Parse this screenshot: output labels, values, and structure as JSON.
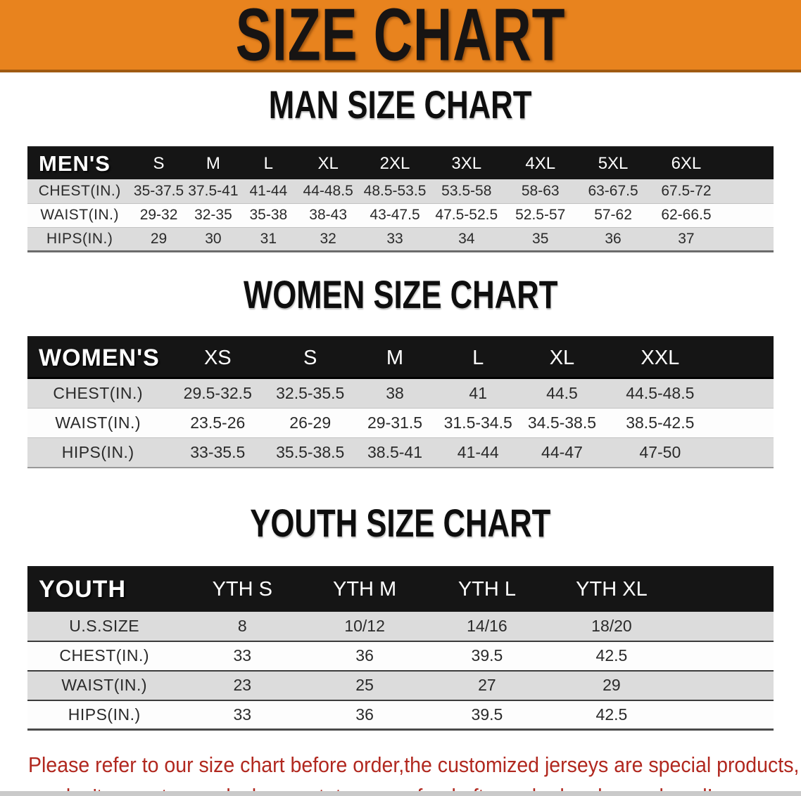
{
  "banner": {
    "title": "SIZE CHART"
  },
  "sections": [
    {
      "id": "men",
      "title": "MAN SIZE CHART",
      "header_label": "MEN'S",
      "columns": [
        "S",
        "M",
        "L",
        "XL",
        "2XL",
        "3XL",
        "4XL",
        "5XL",
        "6XL"
      ],
      "rows": [
        {
          "label": "CHEST(IN.)",
          "values": [
            "35-37.5",
            "37.5-41",
            "41-44",
            "44-48.5",
            "48.5-53.5",
            "53.5-58",
            "58-63",
            "63-67.5",
            "67.5-72"
          ]
        },
        {
          "label": "WAIST(IN.)",
          "values": [
            "29-32",
            "32-35",
            "35-38",
            "38-43",
            "43-47.5",
            "47.5-52.5",
            "52.5-57",
            "57-62",
            "62-66.5"
          ]
        },
        {
          "label": "HIPS(IN.)",
          "values": [
            "29",
            "30",
            "31",
            "32",
            "33",
            "34",
            "35",
            "36",
            "37"
          ]
        }
      ]
    },
    {
      "id": "women",
      "title": "WOMEN SIZE CHART",
      "header_label": "WOMEN'S",
      "columns": [
        "XS",
        "S",
        "M",
        "L",
        "XL",
        "XXL"
      ],
      "rows": [
        {
          "label": "CHEST(IN.)",
          "values": [
            "29.5-32.5",
            "32.5-35.5",
            "38",
            "41",
            "44.5",
            "44.5-48.5"
          ]
        },
        {
          "label": "WAIST(IN.)",
          "values": [
            "23.5-26",
            "26-29",
            "29-31.5",
            "31.5-34.5",
            "34.5-38.5",
            "38.5-42.5"
          ]
        },
        {
          "label": "HIPS(IN.)",
          "values": [
            "33-35.5",
            "35.5-38.5",
            "38.5-41",
            "41-44",
            "44-47",
            "47-50"
          ]
        }
      ]
    },
    {
      "id": "youth",
      "title": "YOUTH SIZE CHART",
      "header_label": "YOUTH",
      "columns": [
        "YTH S",
        "YTH M",
        "YTH L",
        "YTH XL"
      ],
      "rows": [
        {
          "label": "U.S.SIZE",
          "values": [
            "8",
            "10/12",
            "14/16",
            "18/20"
          ]
        },
        {
          "label": "CHEST(IN.)",
          "values": [
            "33",
            "36",
            "39.5",
            "42.5"
          ]
        },
        {
          "label": "WAIST(IN.)",
          "values": [
            "23",
            "25",
            "27",
            "29"
          ]
        },
        {
          "label": "HIPS(IN.)",
          "values": [
            "33",
            "36",
            "39.5",
            "42.5"
          ]
        }
      ]
    }
  ],
  "disclaimer": {
    "line1": "Please refer to our size chart before order,the customized jerseys are special products,",
    "line2": "we don't accept cancel, change, teturn or refund after order has been placed!"
  },
  "colors": {
    "banner_bg": "#E8831E",
    "banner_edge": "#A05A12",
    "header_bar": "#151515",
    "row_gray": "#DCDCDC",
    "disclaimer_red": "#B1281F"
  }
}
